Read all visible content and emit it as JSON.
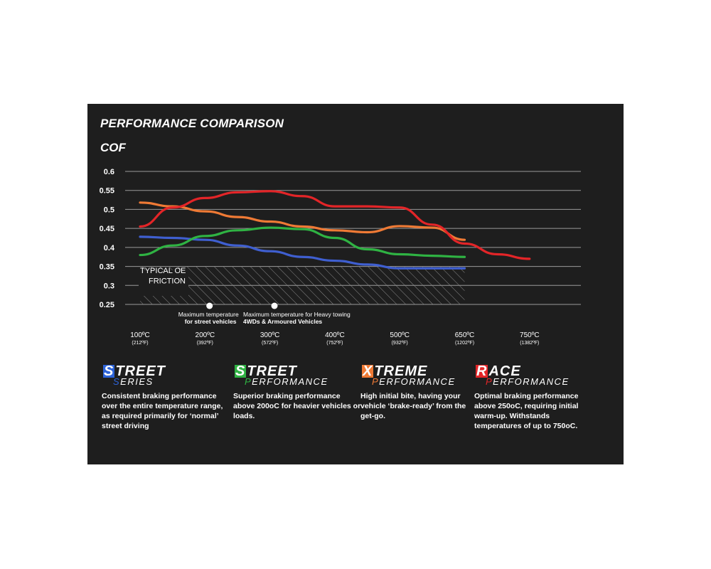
{
  "title": "PERFORMANCE COMPARISON",
  "ylabel": "COF",
  "chart_data": {
    "type": "line",
    "ylim": [
      0.25,
      0.6
    ],
    "yticks": [
      "0.6",
      "0.55",
      "0.5",
      "0.45",
      "0.4",
      "0.35",
      "0.3",
      "0.25"
    ],
    "x_categories": [
      {
        "c": "100ºC",
        "f": "(212ºF)"
      },
      {
        "c": "200ºC",
        "f": "(392ºF)"
      },
      {
        "c": "300ºC",
        "f": "(572ºF)"
      },
      {
        "c": "400ºC",
        "f": "(752ºF)"
      },
      {
        "c": "500ºC",
        "f": "(932ºF)"
      },
      {
        "c": "650ºC",
        "f": "(1202ºF)"
      },
      {
        "c": "750ºC",
        "f": "(1382ºF)"
      }
    ],
    "grid": true,
    "series": [
      {
        "color": "#3f5fd0",
        "x": [
          0,
          0.5,
          1,
          1.5,
          2,
          2.5,
          3,
          3.5,
          4,
          4.5,
          5
        ],
        "y": [
          0.428,
          0.425,
          0.42,
          0.405,
          0.39,
          0.375,
          0.365,
          0.355,
          0.345,
          0.345,
          0.345
        ]
      },
      {
        "color": "#2fb343",
        "x": [
          0,
          0.5,
          1,
          1.5,
          2,
          2.5,
          3,
          3.5,
          4,
          4.5,
          5
        ],
        "y": [
          0.38,
          0.405,
          0.43,
          0.445,
          0.452,
          0.448,
          0.425,
          0.395,
          0.382,
          0.378,
          0.375
        ]
      },
      {
        "color": "#ef7a35",
        "x": [
          0,
          0.5,
          1,
          1.5,
          2,
          2.5,
          3,
          3.5,
          4,
          4.5,
          5
        ],
        "y": [
          0.518,
          0.508,
          0.495,
          0.48,
          0.468,
          0.455,
          0.445,
          0.44,
          0.456,
          0.452,
          0.42
        ]
      },
      {
        "color": "#e32528",
        "x": [
          0,
          0.5,
          1,
          1.5,
          2,
          2.5,
          3,
          3.5,
          4,
          4.5,
          5,
          5.5,
          6
        ],
        "y": [
          0.455,
          0.505,
          0.53,
          0.545,
          0.548,
          0.535,
          0.508,
          0.508,
          0.505,
          0.46,
          0.41,
          0.382,
          0.37
        ]
      }
    ],
    "oe_band": {
      "label_line1": "TYPICAL OE",
      "label_line2": "FRICTION",
      "ymin": 0.25,
      "ymax": 0.35,
      "xmin": 0,
      "xmax": 5
    },
    "markers": [
      {
        "x": 1.07,
        "line1": "Maximum temperature",
        "line2": "for street vehicles"
      },
      {
        "x": 2.07,
        "line1": "Maximum temperature for Heavy towing",
        "line2": "4WDs & Armoured Vehicles"
      }
    ]
  },
  "legend": [
    {
      "cap": "S",
      "rest": "TREET",
      "sub_cap": "S",
      "sub_rest": "ERIES",
      "color": "#2d63d8",
      "desc": "Consistent braking performance over the entire temperature range, as required primarily for ‘normal’ street driving"
    },
    {
      "cap": "S",
      "rest": "TREET",
      "sub_cap": "P",
      "sub_rest": "ERFORMANCE",
      "color": "#2fb343",
      "desc": "Superior braking performance above 200oC for heavier vehicles or loads."
    },
    {
      "cap": "X",
      "rest": "TREME",
      "sub_cap": "P",
      "sub_rest": "ERFORMANCE",
      "color": "#ef7a35",
      "desc": "High initial bite, having your vehicle ‘brake-ready’ from the get-go."
    },
    {
      "cap": "R",
      "rest": "ACE",
      "sub_cap": "P",
      "sub_rest": "ERFORMANCE",
      "color": "#e32528",
      "desc": "Optimal braking performance above 250oC, requiring initial warm-up. Withstands temperatures of up to 750oC."
    }
  ]
}
